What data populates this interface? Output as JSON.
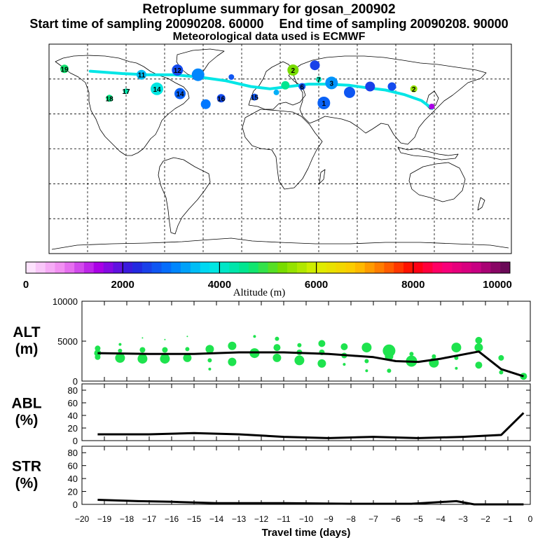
{
  "header": {
    "title": "Retroplume summary for gosan_200902",
    "start_label": "Start time of sampling 20090208. 60000",
    "end_label": "End time of sampling 20090208. 90000",
    "met_label": "Meteorological data used is ECMWF"
  },
  "colorbar": {
    "ticks": [
      "0",
      "2000",
      "4000",
      "6000",
      "8000",
      "10000"
    ],
    "label": "Altitude (m)"
  },
  "chart_data": [
    {
      "type": "map",
      "title": "Retroplume centroid positions (world map)",
      "track": [
        {
          "lon": 126.2,
          "lat": 33.3
        },
        {
          "lon": 118,
          "lat": 40
        },
        {
          "lon": 105,
          "lat": 45
        },
        {
          "lon": 90,
          "lat": 49
        },
        {
          "lon": 75,
          "lat": 51
        },
        {
          "lon": 62,
          "lat": 53
        },
        {
          "lon": 45,
          "lat": 54
        },
        {
          "lon": 30,
          "lat": 54
        },
        {
          "lon": 15,
          "lat": 52
        },
        {
          "lon": 0,
          "lat": 50
        },
        {
          "lon": -15,
          "lat": 52
        },
        {
          "lon": -35,
          "lat": 57
        },
        {
          "lon": -55,
          "lat": 60
        },
        {
          "lon": -75,
          "lat": 62
        },
        {
          "lon": -95,
          "lat": 62
        },
        {
          "lon": -115,
          "lat": 63
        },
        {
          "lon": -140,
          "lat": 65
        }
      ],
      "markers": [
        {
          "lon": 126,
          "lat": 35,
          "alt": 1500,
          "label": ""
        },
        {
          "lon": 112,
          "lat": 50,
          "alt": 5500,
          "label": "2"
        },
        {
          "lon": 95,
          "lat": 52,
          "alt": 2600,
          "label": ""
        },
        {
          "lon": 78,
          "lat": 52,
          "alt": 2500,
          "label": ""
        },
        {
          "lon": 62,
          "lat": 47,
          "alt": 2700,
          "label": ""
        },
        {
          "lon": 48,
          "lat": 55,
          "alt": 3200,
          "label": "3"
        },
        {
          "lon": 38,
          "lat": 58,
          "alt": 4200,
          "label": "7"
        },
        {
          "lon": 25,
          "lat": 52,
          "alt": 2700,
          "label": "6"
        },
        {
          "lon": 12,
          "lat": 53,
          "alt": 4500,
          "label": ""
        },
        {
          "lon": 35,
          "lat": 70,
          "alt": 2500,
          "label": ""
        },
        {
          "lon": 18,
          "lat": 66,
          "alt": 5300,
          "label": "2"
        },
        {
          "lon": 42,
          "lat": 38,
          "alt": 2800,
          "label": "1"
        },
        {
          "lon": 5,
          "lat": 47,
          "alt": 3400,
          "label": ""
        },
        {
          "lon": -12,
          "lat": 43,
          "alt": 2700,
          "label": "15"
        },
        {
          "lon": -38,
          "lat": 42,
          "alt": 2600,
          "label": "16"
        },
        {
          "lon": -50,
          "lat": 37,
          "alt": 3000,
          "label": ""
        },
        {
          "lon": -70,
          "lat": 46,
          "alt": 2800,
          "label": "14"
        },
        {
          "lon": -88,
          "lat": 50,
          "alt": 3900,
          "label": "14"
        },
        {
          "lon": -112,
          "lat": 48,
          "alt": 4300,
          "label": "17"
        },
        {
          "lon": -125,
          "lat": 42,
          "alt": 4600,
          "label": "18"
        },
        {
          "lon": -160,
          "lat": 67,
          "alt": 4700,
          "label": "19"
        },
        {
          "lon": -100,
          "lat": 62,
          "alt": 3500,
          "label": "11"
        },
        {
          "lon": -72,
          "lat": 66,
          "alt": 2600,
          "label": "12"
        },
        {
          "lon": -56,
          "lat": 62,
          "alt": 3100,
          "label": ""
        },
        {
          "lon": -30,
          "lat": 60,
          "alt": 2700,
          "label": ""
        }
      ]
    },
    {
      "type": "scatter+line",
      "panel": "ALT",
      "ylabel": "ALT\n(m)",
      "ylim": [
        0,
        10000
      ],
      "yticks": [
        0,
        5000,
        10000
      ],
      "line": [
        {
          "x": -0.3,
          "y": 600
        },
        {
          "x": -1.3,
          "y": 1500
        },
        {
          "x": -2.3,
          "y": 3700
        },
        {
          "x": -4,
          "y": 2800
        },
        {
          "x": -5,
          "y": 2400
        },
        {
          "x": -6,
          "y": 2500
        },
        {
          "x": -7,
          "y": 3000
        },
        {
          "x": -9,
          "y": 3400
        },
        {
          "x": -11,
          "y": 3600
        },
        {
          "x": -13,
          "y": 3600
        },
        {
          "x": -15,
          "y": 3400
        },
        {
          "x": -17,
          "y": 3400
        },
        {
          "x": -19.3,
          "y": 3500
        }
      ],
      "points": [
        {
          "x": -0.3,
          "y": 600,
          "s": 5
        },
        {
          "x": -1.3,
          "y": 2900,
          "s": 4
        },
        {
          "x": -1.3,
          "y": 1100,
          "s": 3
        },
        {
          "x": -2.3,
          "y": 5100,
          "s": 5
        },
        {
          "x": -2.3,
          "y": 4200,
          "s": 6
        },
        {
          "x": -2.3,
          "y": 2000,
          "s": 5
        },
        {
          "x": -3.3,
          "y": 4200,
          "s": 7
        },
        {
          "x": -3.3,
          "y": 2900,
          "s": 3
        },
        {
          "x": -3.3,
          "y": 1600,
          "s": 2
        },
        {
          "x": -4.3,
          "y": 3100,
          "s": 3
        },
        {
          "x": -4.3,
          "y": 2300,
          "s": 7
        },
        {
          "x": -5.3,
          "y": 2500,
          "s": 8
        },
        {
          "x": -5.3,
          "y": 3400,
          "s": 3
        },
        {
          "x": -6.3,
          "y": 3800,
          "s": 9
        },
        {
          "x": -6.3,
          "y": 3100,
          "s": 6
        },
        {
          "x": -6.3,
          "y": 1300,
          "s": 3
        },
        {
          "x": -7.3,
          "y": 4200,
          "s": 7
        },
        {
          "x": -7.3,
          "y": 2500,
          "s": 3
        },
        {
          "x": -7.3,
          "y": 1300,
          "s": 2
        },
        {
          "x": -8.3,
          "y": 4300,
          "s": 5
        },
        {
          "x": -8.3,
          "y": 3200,
          "s": 4
        },
        {
          "x": -8.3,
          "y": 2100,
          "s": 2
        },
        {
          "x": -9.3,
          "y": 4700,
          "s": 5
        },
        {
          "x": -9.3,
          "y": 3600,
          "s": 4
        },
        {
          "x": -9.3,
          "y": 2200,
          "s": 6
        },
        {
          "x": -10.3,
          "y": 4500,
          "s": 3
        },
        {
          "x": -10.3,
          "y": 3600,
          "s": 4
        },
        {
          "x": -10.3,
          "y": 2600,
          "s": 7
        },
        {
          "x": -11.3,
          "y": 5300,
          "s": 3
        },
        {
          "x": -11.3,
          "y": 4200,
          "s": 5
        },
        {
          "x": -11.3,
          "y": 2900,
          "s": 6
        },
        {
          "x": -12.3,
          "y": 5600,
          "s": 2
        },
        {
          "x": -12.3,
          "y": 3500,
          "s": 7
        },
        {
          "x": -13.3,
          "y": 4400,
          "s": 6
        },
        {
          "x": -13.3,
          "y": 2400,
          "s": 6
        },
        {
          "x": -14.3,
          "y": 4000,
          "s": 6
        },
        {
          "x": -14.3,
          "y": 2600,
          "s": 3
        },
        {
          "x": -14.3,
          "y": 1500,
          "s": 2
        },
        {
          "x": -15.3,
          "y": 5600,
          "s": 1
        },
        {
          "x": -15.3,
          "y": 4000,
          "s": 3
        },
        {
          "x": -15.3,
          "y": 2900,
          "s": 6
        },
        {
          "x": -16.3,
          "y": 5200,
          "s": 1
        },
        {
          "x": -16.3,
          "y": 3900,
          "s": 4
        },
        {
          "x": -16.3,
          "y": 2800,
          "s": 7
        },
        {
          "x": -17.3,
          "y": 5400,
          "s": 1
        },
        {
          "x": -17.3,
          "y": 3900,
          "s": 4
        },
        {
          "x": -17.3,
          "y": 2800,
          "s": 7
        },
        {
          "x": -18.3,
          "y": 4600,
          "s": 2
        },
        {
          "x": -18.3,
          "y": 3800,
          "s": 3
        },
        {
          "x": -18.3,
          "y": 2900,
          "s": 7
        },
        {
          "x": -19.3,
          "y": 4100,
          "s": 4
        },
        {
          "x": -19.3,
          "y": 3500,
          "s": 5
        },
        {
          "x": -19.3,
          "y": 3000,
          "s": 4
        }
      ]
    },
    {
      "type": "line",
      "panel": "ABL",
      "ylabel": "ABL\n(%)",
      "ylim": [
        0,
        90
      ],
      "yticks": [
        0,
        20,
        40,
        60,
        80
      ],
      "line": [
        {
          "x": -0.3,
          "y": 44
        },
        {
          "x": -1.3,
          "y": 9
        },
        {
          "x": -3,
          "y": 6
        },
        {
          "x": -5,
          "y": 4
        },
        {
          "x": -7,
          "y": 6
        },
        {
          "x": -9,
          "y": 4
        },
        {
          "x": -11,
          "y": 6
        },
        {
          "x": -13,
          "y": 10
        },
        {
          "x": -15,
          "y": 12
        },
        {
          "x": -17,
          "y": 10
        },
        {
          "x": -19.3,
          "y": 10
        }
      ]
    },
    {
      "type": "line",
      "panel": "STR",
      "ylabel": "STR\n(%)",
      "ylim": [
        0,
        90
      ],
      "yticks": [
        0,
        20,
        40,
        60,
        80
      ],
      "xlabel": "Travel time (days)",
      "xlim": [
        -20,
        0
      ],
      "xticks": [
        -20,
        -19,
        -18,
        -17,
        -16,
        -15,
        -14,
        -13,
        -12,
        -11,
        -10,
        -9,
        -8,
        -7,
        -6,
        -5,
        -4,
        -3,
        -2,
        -1,
        0
      ],
      "line": [
        {
          "x": -0.3,
          "y": 0
        },
        {
          "x": -2.5,
          "y": 0
        },
        {
          "x": -3.3,
          "y": 5
        },
        {
          "x": -4.3,
          "y": 3
        },
        {
          "x": -5.3,
          "y": 1
        },
        {
          "x": -8,
          "y": 1
        },
        {
          "x": -11,
          "y": 2
        },
        {
          "x": -14,
          "y": 2
        },
        {
          "x": -16,
          "y": 4
        },
        {
          "x": -17.5,
          "y": 5
        },
        {
          "x": -19.3,
          "y": 7
        }
      ]
    }
  ]
}
